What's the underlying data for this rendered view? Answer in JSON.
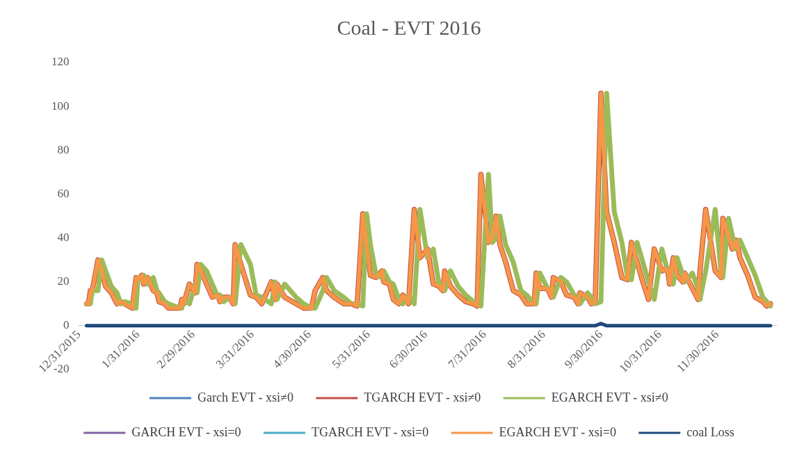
{
  "chart_data": {
    "type": "line",
    "title": "Coal - EVT 2016",
    "x": [
      "2016-01-04",
      "2016-01-05",
      "2016-01-06",
      "2016-01-07",
      "2016-01-10",
      "2016-01-12",
      "2016-01-14",
      "2016-01-17",
      "2016-01-20",
      "2016-01-22",
      "2016-01-24",
      "2016-01-28",
      "2016-01-30",
      "2016-01-31",
      "2016-02-02",
      "2016-02-03",
      "2016-02-05",
      "2016-02-08",
      "2016-02-10",
      "2016-02-11",
      "2016-02-14",
      "2016-02-16",
      "2016-02-22",
      "2016-02-23",
      "2016-02-24",
      "2016-02-27",
      "2016-03-01",
      "2016-03-02",
      "2016-03-04",
      "2016-03-07",
      "2016-03-10",
      "2016-03-13",
      "2016-03-14",
      "2016-03-16",
      "2016-03-19",
      "2016-03-21",
      "2016-03-22",
      "2016-03-25",
      "2016-03-30",
      "2016-04-02",
      "2016-04-05",
      "2016-04-10",
      "2016-04-12",
      "2016-04-13",
      "2016-04-17",
      "2016-04-23",
      "2016-04-27",
      "2016-05-01",
      "2016-05-03",
      "2016-05-07",
      "2016-05-09",
      "2016-05-13",
      "2016-05-18",
      "2016-05-22",
      "2016-05-25",
      "2016-05-28",
      "2016-05-30",
      "2016-06-01",
      "2016-06-04",
      "2016-06-07",
      "2016-06-08",
      "2016-06-11",
      "2016-06-13",
      "2016-06-16",
      "2016-06-18",
      "2016-06-21",
      "2016-06-24",
      "2016-06-27",
      "2016-07-01",
      "2016-07-04",
      "2016-07-07",
      "2016-07-09",
      "2016-07-10",
      "2016-07-13",
      "2016-07-17",
      "2016-07-21",
      "2016-07-25",
      "2016-07-27",
      "2016-07-29",
      "2016-08-02",
      "2016-08-04",
      "2016-08-06",
      "2016-08-08",
      "2016-08-11",
      "2016-08-15",
      "2016-08-19",
      "2016-08-22",
      "2016-08-26",
      "2016-08-27",
      "2016-08-29",
      "2016-09-02",
      "2016-09-04",
      "2016-09-05",
      "2016-09-09",
      "2016-09-12",
      "2016-09-16",
      "2016-09-18",
      "2016-09-19",
      "2016-09-23",
      "2016-09-25",
      "2016-09-27",
      "2016-09-30",
      "2016-10-03",
      "2016-10-07",
      "2016-10-11",
      "2016-10-14",
      "2016-10-16",
      "2016-10-19",
      "2016-10-22",
      "2016-10-25",
      "2016-10-28",
      "2016-11-01",
      "2016-11-04",
      "2016-11-05",
      "2016-11-07",
      "2016-11-09",
      "2016-11-12",
      "2016-11-13",
      "2016-11-17",
      "2016-11-20",
      "2016-11-21",
      "2016-11-24",
      "2016-11-29",
      "2016-12-02",
      "2016-12-03",
      "2016-12-06",
      "2016-12-08",
      "2016-12-10",
      "2016-12-12",
      "2016-12-16",
      "2016-12-20",
      "2016-12-24",
      "2016-12-26",
      "2016-12-28"
    ],
    "series": [
      {
        "name": "Garch EVT - xsi≠0",
        "color": "#4f81bd",
        "values": [
          null,
          null,
          null,
          null,
          null,
          null,
          null,
          null,
          null,
          null,
          null,
          null,
          null,
          null,
          null,
          null,
          null,
          null,
          null,
          null,
          null,
          null,
          null,
          null,
          null,
          null,
          null,
          null,
          null,
          null,
          null,
          null,
          null,
          null,
          null,
          null,
          null,
          null,
          null,
          null,
          null,
          null,
          null,
          null,
          null,
          null,
          null,
          null,
          null,
          null,
          null,
          null,
          null,
          null,
          null,
          null,
          null,
          null,
          null,
          null,
          null,
          null,
          null,
          null,
          null,
          null,
          null,
          null,
          null,
          null,
          null,
          null,
          null,
          null,
          null,
          null,
          null,
          null,
          null,
          null,
          null,
          null,
          null,
          null,
          null,
          null,
          null,
          null,
          null,
          null,
          null,
          null,
          null,
          null,
          null,
          null,
          null,
          null,
          null,
          null,
          null,
          null,
          null,
          null,
          null,
          null,
          null,
          null,
          null,
          null,
          null,
          null,
          null,
          null,
          null,
          null,
          null,
          null,
          null,
          null,
          null,
          null,
          null,
          null,
          null,
          null,
          null,
          null,
          null,
          null,
          null,
          null,
          null,
          null
        ]
      },
      {
        "name": "TGARCH EVT - xsi≠0",
        "color": "#c0504d",
        "values": [
          10,
          10,
          16,
          16,
          30,
          25,
          18,
          15,
          10,
          11,
          10,
          8,
          22,
          21,
          23,
          19,
          22,
          16,
          15,
          11,
          10,
          8,
          8,
          12,
          10,
          19,
          15,
          28,
          25,
          19,
          13,
          14,
          11,
          13,
          13,
          10,
          37,
          28,
          14,
          13,
          10,
          20,
          12,
          19,
          13,
          10,
          8,
          8,
          16,
          22,
          16,
          13,
          10,
          10,
          9,
          51,
          37,
          23,
          22,
          25,
          20,
          19,
          12,
          10,
          14,
          10,
          53,
          31,
          35,
          19,
          18,
          16,
          25,
          18,
          14,
          11,
          10,
          9,
          69,
          38,
          40,
          50,
          37,
          29,
          16,
          14,
          10,
          10,
          24,
          17,
          17,
          13,
          22,
          20,
          14,
          13,
          10,
          15,
          13,
          10,
          11,
          106,
          52,
          38,
          22,
          21,
          38,
          29,
          20,
          12,
          35,
          25,
          26,
          19,
          31,
          23,
          20,
          24,
          17,
          12,
          25,
          53,
          25,
          22,
          49,
          41,
          35,
          39,
          31,
          23,
          13,
          11,
          9,
          10
        ]
      },
      {
        "name": "EGARCH EVT - xsi≠0",
        "color": "#9bbb59",
        "values": [
          10,
          10,
          10,
          16,
          16,
          30,
          25,
          18,
          15,
          10,
          11,
          10,
          8,
          22,
          21,
          23,
          19,
          22,
          16,
          15,
          11,
          10,
          8,
          8,
          12,
          10,
          19,
          15,
          28,
          25,
          19,
          13,
          14,
          11,
          13,
          13,
          10,
          37,
          28,
          14,
          13,
          10,
          20,
          12,
          19,
          13,
          10,
          8,
          8,
          16,
          22,
          16,
          13,
          10,
          10,
          9,
          51,
          37,
          23,
          22,
          25,
          20,
          19,
          12,
          10,
          14,
          10,
          53,
          31,
          35,
          19,
          18,
          16,
          25,
          18,
          14,
          11,
          10,
          9,
          69,
          38,
          40,
          50,
          37,
          29,
          16,
          14,
          10,
          10,
          24,
          17,
          17,
          13,
          22,
          20,
          14,
          13,
          10,
          15,
          13,
          10,
          11,
          106,
          52,
          38,
          22,
          21,
          38,
          29,
          20,
          12,
          35,
          25,
          26,
          19,
          31,
          23,
          20,
          24,
          17,
          12,
          25,
          53,
          25,
          22,
          49,
          41,
          35,
          39,
          31,
          23,
          13,
          11,
          9
        ]
      },
      {
        "name": "GARCH EVT - xsi=0",
        "color": "#8064a2",
        "values": [
          null,
          null,
          null,
          null,
          null,
          null,
          null,
          null,
          null,
          null,
          null,
          null,
          null,
          null,
          null,
          null,
          null,
          null,
          null,
          null,
          null,
          null,
          null,
          null,
          null,
          null,
          null,
          null,
          null,
          null,
          null,
          null,
          null,
          null,
          null,
          null,
          null,
          null,
          null,
          null,
          null,
          null,
          null,
          null,
          null,
          null,
          null,
          null,
          null,
          null,
          null,
          null,
          null,
          null,
          null,
          null,
          null,
          null,
          null,
          null,
          null,
          null,
          null,
          null,
          null,
          null,
          null,
          null,
          null,
          null,
          null,
          null,
          null,
          null,
          null,
          null,
          null,
          null,
          null,
          null,
          null,
          null,
          null,
          null,
          null,
          null,
          null,
          null,
          null,
          null,
          null,
          null,
          null,
          null,
          null,
          null,
          null,
          null,
          null,
          null,
          null,
          null,
          null,
          null,
          null,
          null,
          null,
          null,
          null,
          null,
          null,
          null,
          null,
          null,
          null,
          null,
          null,
          null,
          null,
          null,
          null,
          null,
          null,
          null,
          null,
          null,
          null,
          null,
          null,
          null,
          null,
          null,
          null,
          null
        ]
      },
      {
        "name": "TGARCH EVT - xsi=0",
        "color": "#4bacc6",
        "values": [
          null,
          null,
          null,
          null,
          null,
          null,
          null,
          null,
          null,
          null,
          null,
          null,
          null,
          null,
          null,
          null,
          null,
          null,
          null,
          null,
          null,
          null,
          null,
          null,
          null,
          null,
          null,
          null,
          null,
          null,
          null,
          null,
          null,
          null,
          null,
          null,
          null,
          null,
          null,
          null,
          null,
          null,
          null,
          null,
          null,
          null,
          null,
          null,
          null,
          null,
          null,
          null,
          null,
          null,
          null,
          null,
          null,
          null,
          null,
          null,
          null,
          null,
          null,
          null,
          null,
          null,
          null,
          null,
          null,
          null,
          null,
          null,
          null,
          null,
          null,
          null,
          null,
          null,
          null,
          null,
          null,
          null,
          null,
          null,
          null,
          null,
          null,
          null,
          null,
          null,
          null,
          null,
          null,
          null,
          null,
          null,
          null,
          null,
          null,
          null,
          null,
          null,
          null,
          null,
          null,
          null,
          null,
          null,
          null,
          null,
          null,
          null,
          null,
          null,
          null,
          null,
          null,
          null,
          null,
          null,
          null,
          null,
          null,
          null,
          null,
          null,
          null,
          null,
          null,
          null,
          null,
          null,
          null,
          null
        ]
      },
      {
        "name": "EGARCH EVT - xsi=0",
        "color": "#f79646",
        "values": [
          10,
          10,
          16,
          16,
          30,
          25,
          18,
          15,
          10,
          11,
          10,
          8,
          22,
          21,
          23,
          19,
          22,
          16,
          15,
          11,
          10,
          8,
          8,
          12,
          10,
          19,
          15,
          28,
          25,
          19,
          13,
          14,
          11,
          13,
          13,
          10,
          37,
          28,
          14,
          13,
          10,
          20,
          12,
          19,
          13,
          10,
          8,
          8,
          16,
          22,
          16,
          13,
          10,
          10,
          9,
          51,
          37,
          23,
          22,
          25,
          20,
          19,
          12,
          10,
          14,
          10,
          53,
          31,
          35,
          19,
          18,
          16,
          25,
          18,
          14,
          11,
          10,
          9,
          69,
          38,
          40,
          50,
          37,
          29,
          16,
          14,
          10,
          10,
          24,
          17,
          17,
          13,
          22,
          20,
          14,
          13,
          10,
          15,
          13,
          10,
          11,
          106,
          52,
          38,
          22,
          21,
          38,
          29,
          20,
          12,
          35,
          25,
          26,
          19,
          31,
          23,
          20,
          24,
          17,
          12,
          25,
          53,
          25,
          22,
          49,
          41,
          35,
          39,
          31,
          23,
          13,
          11,
          9,
          10
        ]
      },
      {
        "name": "coal Loss",
        "color": "#1f497d",
        "x": [
          "2016-01-04",
          "2016-09-27",
          "2016-09-30",
          "2016-10-03",
          "2016-12-28"
        ],
        "values": [
          0,
          0,
          1,
          0,
          0
        ]
      }
    ],
    "xticks": [
      {
        "value": "2015-12-31",
        "label": "12/31/2015"
      },
      {
        "value": "2016-01-31",
        "label": "1/31/2016"
      },
      {
        "value": "2016-02-29",
        "label": "2/29/2016"
      },
      {
        "value": "2016-03-31",
        "label": "3/31/2016"
      },
      {
        "value": "2016-04-30",
        "label": "4/30/2016"
      },
      {
        "value": "2016-05-31",
        "label": "5/31/2016"
      },
      {
        "value": "2016-06-30",
        "label": "6/30/2016"
      },
      {
        "value": "2016-07-31",
        "label": "7/31/2016"
      },
      {
        "value": "2016-08-31",
        "label": "8/31/2016"
      },
      {
        "value": "2016-09-30",
        "label": "9/30/2016"
      },
      {
        "value": "2016-10-31",
        "label": "10/31/2016"
      },
      {
        "value": "2016-11-30",
        "label": "11/30/2016"
      }
    ],
    "xlim": [
      "2015-12-31",
      "2016-12-31"
    ],
    "ylim": [
      -20,
      120
    ],
    "yticks": [
      -20,
      0,
      20,
      40,
      60,
      80,
      100,
      120
    ],
    "grid": false,
    "legend": "bottom",
    "marker": "none",
    "line_style": "solid"
  }
}
